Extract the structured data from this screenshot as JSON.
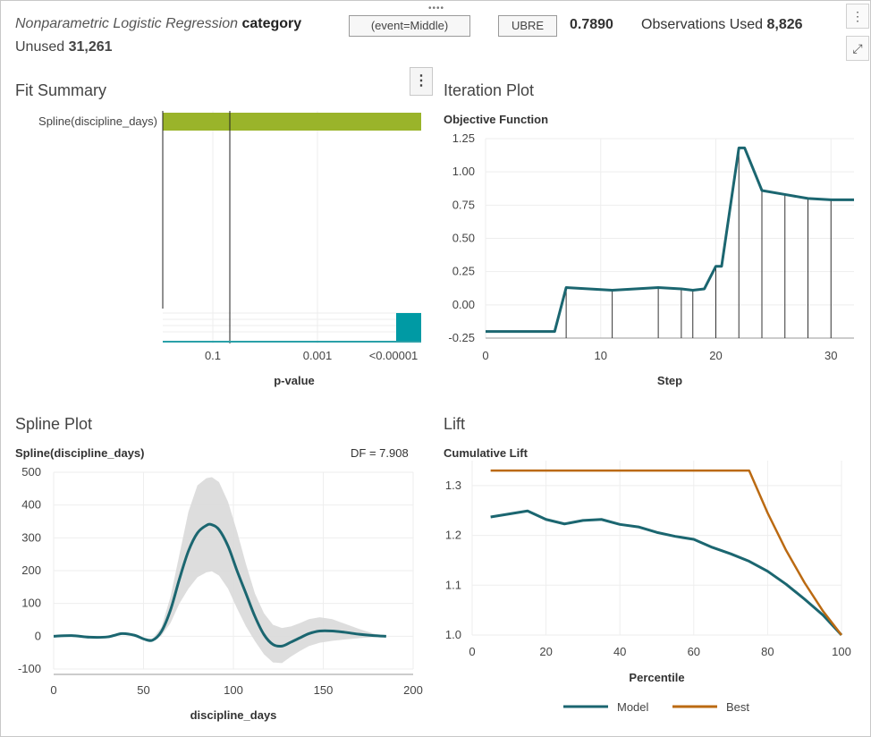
{
  "header": {
    "model_name": "Nonparametric Logistic Regression",
    "target": "category",
    "event_label": "(event=Middle)",
    "criterion_label": "UBRE",
    "criterion_value": "0.7890",
    "obs_used_label": "Observations Used",
    "obs_used_value": "8,826",
    "unused_label": "Unused",
    "unused_value": "31,261"
  },
  "icons": {
    "drag": "drag-handle-icon",
    "more": "more-vertical-icon",
    "expand": "expand-icon"
  },
  "colors": {
    "teal": "#1b6670",
    "bar_green": "#9ab42a",
    "bar_teal": "#009aa4",
    "orange": "#bb6a12",
    "band": "#d9d9d9"
  },
  "chart_data": [
    {
      "panel_title": "Fit Summary",
      "type": "bar",
      "categories": [
        "Spline(discipline_days)"
      ],
      "xlabel": "p-value",
      "x_ticks": [
        "0.1",
        "0.001",
        "<0.00001"
      ]
    },
    {
      "panel_title": "Iteration Plot",
      "type": "line",
      "title": "Objective Function",
      "xlabel": "Step",
      "xlim": [
        0,
        32
      ],
      "ylim": [
        -0.25,
        1.25
      ],
      "x_ticks": [
        0,
        10,
        20,
        30
      ],
      "y_ticks": [
        "-0.25",
        "0.00",
        "0.25",
        "0.50",
        "0.75",
        "1.00",
        "1.25"
      ],
      "x": [
        0,
        6,
        7,
        11,
        15,
        17,
        18,
        19,
        20,
        20.5,
        22,
        22.5,
        24,
        26,
        28,
        30,
        32
      ],
      "values": [
        -0.2,
        -0.2,
        0.13,
        0.11,
        0.13,
        0.12,
        0.11,
        0.12,
        0.29,
        0.29,
        1.18,
        1.18,
        0.86,
        0.83,
        0.8,
        0.79,
        0.79
      ],
      "drop_lines": [
        7,
        11,
        15,
        17,
        18,
        20,
        22,
        24,
        26,
        28,
        30
      ]
    },
    {
      "panel_title": "Spline Plot",
      "type": "line",
      "title": "Spline(discipline_days)",
      "annotation": "DF = 7.908",
      "xlabel": "discipline_days",
      "xlim": [
        0,
        200
      ],
      "ylim": [
        -100,
        500
      ],
      "x_ticks": [
        0,
        50,
        100,
        150,
        200
      ],
      "y_ticks": [
        -100,
        0,
        100,
        200,
        300,
        400,
        500
      ],
      "x": [
        0,
        10,
        20,
        30,
        38,
        45,
        50,
        55,
        60,
        65,
        70,
        75,
        80,
        85,
        88,
        92,
        97,
        102,
        107,
        112,
        117,
        122,
        127,
        132,
        137,
        142,
        148,
        155,
        162,
        170,
        178,
        185
      ],
      "values": [
        0,
        2,
        -3,
        -2,
        8,
        3,
        -8,
        -12,
        15,
        80,
        175,
        260,
        315,
        338,
        340,
        325,
        275,
        200,
        130,
        60,
        5,
        -25,
        -30,
        -18,
        -5,
        8,
        16,
        16,
        12,
        6,
        2,
        0
      ],
      "band_upper": [
        0,
        2,
        -3,
        -2,
        8,
        3,
        -8,
        -8,
        28,
        120,
        250,
        380,
        460,
        482,
        485,
        470,
        410,
        320,
        220,
        130,
        70,
        35,
        25,
        30,
        40,
        52,
        58,
        52,
        38,
        22,
        8,
        0
      ],
      "band_lower": [
        0,
        2,
        -3,
        -2,
        8,
        3,
        -8,
        -16,
        2,
        40,
        100,
        145,
        180,
        195,
        198,
        185,
        145,
        85,
        30,
        -15,
        -55,
        -80,
        -82,
        -62,
        -45,
        -30,
        -20,
        -14,
        -10,
        -6,
        -3,
        0
      ]
    },
    {
      "panel_title": "Lift",
      "type": "line",
      "title": "Cumulative Lift",
      "xlabel": "Percentile",
      "xlim": [
        0,
        100
      ],
      "ylim": [
        1.0,
        1.35
      ],
      "x_ticks": [
        0,
        20,
        40,
        60,
        80,
        100
      ],
      "y_ticks": [
        "1.0",
        "1.1",
        "1.2",
        "1.3"
      ],
      "legend": "bottom",
      "series": [
        {
          "name": "Model",
          "x": [
            5,
            10,
            15,
            20,
            25,
            30,
            35,
            40,
            45,
            50,
            55,
            60,
            65,
            70,
            75,
            80,
            85,
            90,
            95,
            100
          ],
          "values": [
            1.237,
            1.243,
            1.249,
            1.232,
            1.223,
            1.23,
            1.232,
            1.222,
            1.217,
            1.206,
            1.198,
            1.192,
            1.176,
            1.163,
            1.148,
            1.128,
            1.102,
            1.072,
            1.04,
            1.0
          ]
        },
        {
          "name": "Best",
          "x": [
            5,
            75,
            80,
            85,
            90,
            95,
            100
          ],
          "values": [
            1.33,
            1.33,
            1.245,
            1.17,
            1.105,
            1.048,
            1.0
          ]
        }
      ]
    }
  ]
}
